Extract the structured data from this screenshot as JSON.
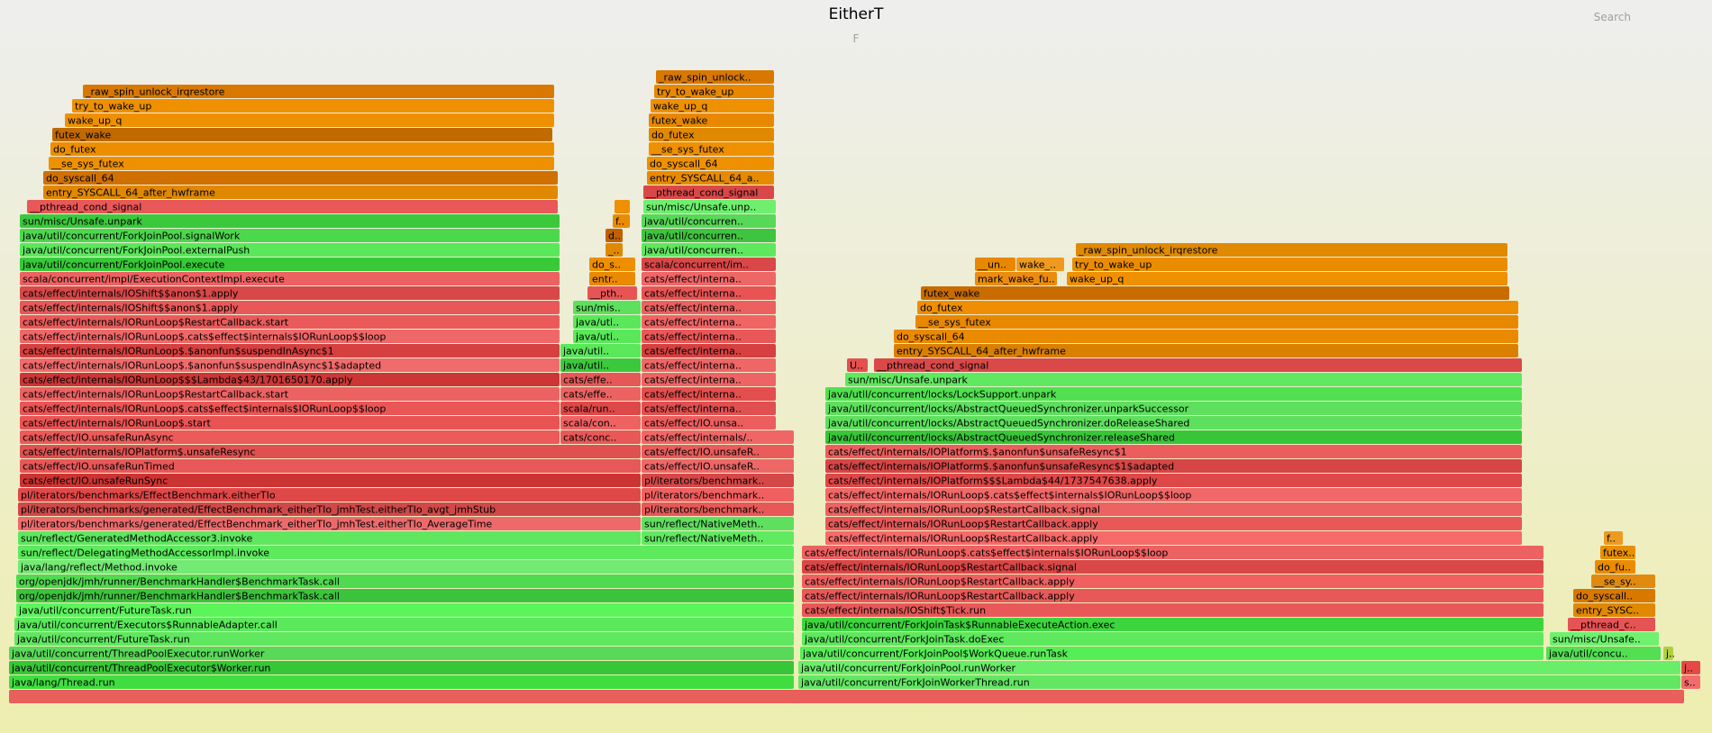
{
  "header": {
    "title": "EitherT",
    "subtitle": "F",
    "search_label": "Search"
  },
  "chart_data": {
    "type": "flamegraph",
    "title": "EitherT",
    "note": "frames: [col, row, span, label, color]; rows counted from bottom",
    "row_count": 46,
    "column_count": 1900,
    "frames": [
      [
        10,
        0,
        1860,
        "",
        "#e85f5c"
      ],
      [
        10,
        1,
        872,
        "java/lang/Thread.run",
        "#40dd40"
      ],
      [
        886,
        1,
        980,
        "java/util/concurrent/ForkJoinWorkerThread.run",
        "#63e763"
      ],
      [
        1866,
        1,
        22,
        "s..",
        "#f56b6b"
      ],
      [
        10,
        2,
        872,
        "java/util/concurrent/ThreadPoolExecutor$Worker.run",
        "#37c637"
      ],
      [
        886,
        2,
        980,
        "java/util/concurrent/ForkJoinPool.runWorker",
        "#69ee69"
      ],
      [
        1866,
        2,
        22,
        "j..",
        "#e74747"
      ],
      [
        10,
        3,
        872,
        "java/util/concurrent/ThreadPoolExecutor.runWorker",
        "#58d958"
      ],
      [
        888,
        3,
        826,
        "java/util/concurrent/ForkJoinPool$WorkQueue.runTask",
        "#56ee56"
      ],
      [
        1716,
        3,
        128,
        "java/util/concu..",
        "#52e052"
      ],
      [
        1846,
        3,
        12,
        "j..",
        "#b0d040"
      ],
      [
        16,
        4,
        866,
        "java/util/concurrent/FutureTask.run",
        "#5fe75f"
      ],
      [
        890,
        4,
        824,
        "java/util/concurrent/ForkJoinTask.doExec",
        "#5de85d"
      ],
      [
        1720,
        4,
        122,
        "sun/misc/Unsafe..",
        "#6ff16f"
      ],
      [
        16,
        5,
        866,
        "java/util/concurrent/Executors$RunnableAdapter.call",
        "#5be85b"
      ],
      [
        890,
        5,
        824,
        "java/util/concurrent/ForkJoinTask$RunnableExecuteAction.exec",
        "#3dd53d"
      ],
      [
        1740,
        5,
        98,
        "__pthread_c..",
        "#e45454"
      ],
      [
        18,
        6,
        864,
        "java/util/concurrent/FutureTask.run",
        "#5bf55b"
      ],
      [
        890,
        6,
        824,
        "cats/effect/internals/IOShift$Tick.run",
        "#e85858"
      ],
      [
        1746,
        6,
        92,
        "entry_SYSC..",
        "#e08800"
      ],
      [
        18,
        7,
        864,
        "org/openjdk/jmh/runner/BenchmarkHandler$BenchmarkTask.call",
        "#3bc43b"
      ],
      [
        890,
        7,
        824,
        "cats/effect/internals/IORunLoop$RestartCallback.apply",
        "#e85858"
      ],
      [
        1746,
        7,
        92,
        "do_syscall..",
        "#d87800"
      ],
      [
        18,
        8,
        864,
        "org/openjdk/jmh/runner/BenchmarkHandler$BenchmarkTask.call",
        "#4fda4f"
      ],
      [
        890,
        8,
        824,
        "cats/effect/internals/IORunLoop$RestartCallback.apply",
        "#f06060"
      ],
      [
        1766,
        8,
        72,
        "__se_sy..",
        "#e18a10"
      ],
      [
        20,
        9,
        862,
        "java/lang/reflect/Method.invoke",
        "#73ea73"
      ],
      [
        890,
        9,
        824,
        "cats/effect/internals/IORunLoop$RestartCallback.signal",
        "#d94747"
      ],
      [
        1770,
        9,
        46,
        "do_fu..",
        "#ea8c00"
      ],
      [
        20,
        10,
        862,
        "sun/reflect/DelegatingMethodAccessorImpl.invoke",
        "#5dea5d"
      ],
      [
        890,
        10,
        824,
        "cats/effect/internals/IORunLoop$.cats$effect$internals$IORunLoop$$loop",
        "#ec6262"
      ],
      [
        1776,
        10,
        40,
        "futex..",
        "#e89000"
      ],
      [
        20,
        11,
        692,
        "sun/reflect/GeneratedMethodAccessor3.invoke",
        "#5fe75f"
      ],
      [
        712,
        11,
        170,
        "sun/reflect/NativeMeth..",
        "#60ea60"
      ],
      [
        916,
        11,
        774,
        "cats/effect/internals/IORunLoop$RestartCallback.apply",
        "#f66a6a"
      ],
      [
        1780,
        11,
        22,
        "f..",
        "#ee9a20"
      ],
      [
        20,
        12,
        692,
        "pl/iterators/benchmarks/generated/EffectBenchmark_eitherTIo_jmhTest.eitherTIo_AverageTime",
        "#ee6a6a"
      ],
      [
        712,
        12,
        170,
        "sun/reflect/NativeMeth..",
        "#5ee05e"
      ],
      [
        916,
        12,
        774,
        "cats/effect/internals/IORunLoop$RestartCallback.apply",
        "#e85858"
      ],
      [
        20,
        13,
        692,
        "pl/iterators/benchmarks/generated/EffectBenchmark_eitherTIo_jmhTest.eitherTIo_avgt_jmhStub",
        "#d24848"
      ],
      [
        712,
        13,
        170,
        "pl/iterators/benchmark..",
        "#e85858"
      ],
      [
        916,
        13,
        774,
        "cats/effect/internals/IORunLoop$RestartCallback.signal",
        "#ed6262"
      ],
      [
        20,
        14,
        692,
        "pl/iterators/benchmarks/EffectBenchmark.eitherTIo",
        "#e04848"
      ],
      [
        712,
        14,
        170,
        "pl/iterators/benchmark..",
        "#f06060"
      ],
      [
        916,
        14,
        774,
        "cats/effect/internals/IORunLoop$.cats$effect$internals$IORunLoop$$loop",
        "#f06868"
      ],
      [
        22,
        15,
        690,
        "cats/effect/IO.unsafeRunSync",
        "#cc3434"
      ],
      [
        712,
        15,
        170,
        "pl/iterators/benchmark..",
        "#d54848"
      ],
      [
        916,
        15,
        774,
        "cats/effect/internals/IOPlatform$$$Lambda$44/1737547638.apply",
        "#de4848"
      ],
      [
        22,
        16,
        690,
        "cats/effect/IO.unsafeRunTimed",
        "#e85858"
      ],
      [
        712,
        16,
        170,
        "cats/effect/IO.unsafeR..",
        "#ee6767"
      ],
      [
        916,
        16,
        774,
        "cats/effect/internals/IOPlatform$.$anonfun$unsafeResync$1$adapted",
        "#d64646"
      ],
      [
        22,
        17,
        690,
        "cats/effect/internals/IOPlatform$.unsafeResync",
        "#e05050"
      ],
      [
        712,
        17,
        170,
        "cats/effect/IO.unsafeR..",
        "#ea5b5b"
      ],
      [
        916,
        17,
        774,
        "cats/effect/internals/IOPlatform$.$anonfun$unsafeResync$1",
        "#ec5e5e"
      ],
      [
        22,
        18,
        600,
        "cats/effect/IO.unsafeRunAsync",
        "#ec5a5a"
      ],
      [
        622,
        18,
        90,
        "cats/conc..",
        "#e85858"
      ],
      [
        712,
        18,
        170,
        "cats/effect/internals/..",
        "#f06666"
      ],
      [
        916,
        18,
        774,
        "java/util/concurrent/locks/AbstractQueuedSynchronizer.releaseShared",
        "#38c638"
      ],
      [
        22,
        19,
        600,
        "cats/effect/internals/IORunLoop$.start",
        "#e85454"
      ],
      [
        622,
        19,
        90,
        "scala/con..",
        "#ee6262"
      ],
      [
        712,
        19,
        150,
        "cats/effect/IO.unsa..",
        "#ec5e5e"
      ],
      [
        916,
        19,
        774,
        "java/util/concurrent/locks/AbstractQueuedSynchronizer.doReleaseShared",
        "#5ee05e"
      ],
      [
        22,
        20,
        600,
        "cats/effect/internals/IORunLoop$.cats$effect$internals$IORunLoop$$loop",
        "#e85656"
      ],
      [
        622,
        20,
        90,
        "scala/run..",
        "#dd4848"
      ],
      [
        712,
        20,
        150,
        "cats/effect/interna..",
        "#e05050"
      ],
      [
        916,
        20,
        774,
        "java/util/concurrent/locks/AbstractQueuedSynchronizer.unparkSuccessor",
        "#5ee05e"
      ],
      [
        22,
        21,
        600,
        "cats/effect/internals/IORunLoop$RestartCallback.start",
        "#ec6262"
      ],
      [
        622,
        21,
        90,
        "cats/effe..",
        "#ec6262"
      ],
      [
        712,
        21,
        150,
        "cats/effect/interna..",
        "#e54e4e"
      ],
      [
        916,
        21,
        774,
        "java/util/concurrent/locks/LockSupport.unpark",
        "#50e050"
      ],
      [
        22,
        22,
        600,
        "cats/effect/internals/IORunLoop$$$Lambda$43/1701650170.apply",
        "#cc3636"
      ],
      [
        622,
        22,
        90,
        "cats/effe..",
        "#e45858"
      ],
      [
        712,
        22,
        150,
        "cats/effect/interna..",
        "#ee6464"
      ],
      [
        938,
        22,
        752,
        "sun/misc/Unsafe.unpark",
        "#60e860"
      ],
      [
        22,
        23,
        600,
        "cats/effect/internals/IORunLoop$.$anonfun$suspendInAsync$1$adapted",
        "#f06b6b"
      ],
      [
        622,
        23,
        90,
        "java/util..",
        "#3cc83c"
      ],
      [
        712,
        23,
        150,
        "cats/effect/interna..",
        "#ee6666"
      ],
      [
        940,
        23,
        24,
        "U..",
        "#e45050"
      ],
      [
        970,
        23,
        720,
        "__pthread_cond_signal",
        "#da4848"
      ],
      [
        22,
        24,
        600,
        "cats/effect/internals/IORunLoop$.$anonfun$suspendInAsync$1",
        "#d54040"
      ],
      [
        622,
        24,
        90,
        "java/util..",
        "#5ae85a"
      ],
      [
        712,
        24,
        150,
        "cats/effect/interna..",
        "#d64040"
      ],
      [
        992,
        24,
        694,
        "entry_SYSCALL_64_after_hwframe",
        "#da8000"
      ],
      [
        22,
        25,
        600,
        "cats/effect/internals/IORunLoop$.cats$effect$internals$IORunLoop$$loop",
        "#ef6868"
      ],
      [
        636,
        25,
        76,
        "java/uti..",
        "#5ae85a"
      ],
      [
        712,
        25,
        150,
        "cats/effect/interna..",
        "#e85858"
      ],
      [
        992,
        25,
        694,
        "do_syscall_64",
        "#ea8a00"
      ],
      [
        22,
        26,
        600,
        "cats/effect/internals/IORunLoop$RestartCallback.start",
        "#ea5a5a"
      ],
      [
        636,
        26,
        76,
        "java/uti..",
        "#5ae85a"
      ],
      [
        712,
        26,
        150,
        "cats/effect/interna..",
        "#f06464"
      ],
      [
        1016,
        26,
        670,
        "__se_sys_futex",
        "#e88800"
      ],
      [
        22,
        27,
        600,
        "cats/effect/internals/IOShift$$anon$1.apply",
        "#e85858"
      ],
      [
        636,
        27,
        76,
        "sun/mis..",
        "#5ee05e"
      ],
      [
        712,
        27,
        150,
        "cats/effect/interna..",
        "#ec6060"
      ],
      [
        1018,
        27,
        668,
        "do_futex",
        "#ee8e00"
      ],
      [
        22,
        28,
        600,
        "cats/effect/internals/IOShift$$anon$1.apply",
        "#d84848"
      ],
      [
        652,
        28,
        56,
        "__pth..",
        "#e85454"
      ],
      [
        712,
        28,
        150,
        "cats/effect/interna..",
        "#e85454"
      ],
      [
        1022,
        28,
        654,
        "futex_wake",
        "#c86c00"
      ],
      [
        22,
        29,
        600,
        "scala/concurrent/impl/ExecutionContextImpl.execute",
        "#ec6262"
      ],
      [
        654,
        29,
        52,
        "entr..",
        "#ea8a00"
      ],
      [
        712,
        29,
        150,
        "cats/effect/interna..",
        "#ee6767"
      ],
      [
        1082,
        29,
        92,
        "mark_wake_fu..",
        "#ea8c10"
      ],
      [
        1184,
        29,
        490,
        "wake_up_q",
        "#ee9000"
      ],
      [
        22,
        30,
        600,
        "java/util/concurrent/ForkJoinPool.execute",
        "#38c838"
      ],
      [
        654,
        30,
        52,
        "do_s..",
        "#ee8e00"
      ],
      [
        712,
        30,
        150,
        "scala/concurrent/im..",
        "#d84848"
      ],
      [
        1082,
        30,
        46,
        "__un..",
        "#e88800"
      ],
      [
        1128,
        30,
        54,
        "wake_..",
        "#ee9a20"
      ],
      [
        1190,
        30,
        484,
        "try_to_wake_up",
        "#ea8c00"
      ],
      [
        22,
        31,
        600,
        "java/util/concurrent/ForkJoinPool.externalPush",
        "#5ae85a"
      ],
      [
        672,
        31,
        20,
        "_..",
        "#e08800"
      ],
      [
        712,
        31,
        150,
        "java/util/concurren..",
        "#5ee85e"
      ],
      [
        1194,
        31,
        480,
        "_raw_spin_unlock_irqrestore",
        "#e08a00"
      ],
      [
        22,
        32,
        600,
        "java/util/concurrent/ForkJoinPool.signalWork",
        "#4cd84c"
      ],
      [
        672,
        32,
        20,
        "d..",
        "#c06000"
      ],
      [
        712,
        32,
        150,
        "java/util/concurren..",
        "#3ec43e"
      ],
      [
        22,
        33,
        600,
        "sun/misc/Unsafe.unpark",
        "#3cc83c"
      ],
      [
        680,
        33,
        20,
        "f..",
        "#ea8c00"
      ],
      [
        712,
        33,
        150,
        "java/util/concurren..",
        "#58d858"
      ],
      [
        30,
        34,
        590,
        "__pthread_cond_signal",
        "#e85858"
      ],
      [
        682,
        34,
        18,
        "",
        "#ee9000"
      ],
      [
        714,
        34,
        148,
        "sun/misc/Unsafe.unp..",
        "#6ef06e"
      ],
      [
        48,
        35,
        572,
        "entry_SYSCALL_64_after_hwframe",
        "#e08800"
      ],
      [
        714,
        35,
        146,
        "__pthread_cond_signal",
        "#d84848"
      ],
      [
        48,
        36,
        572,
        "do_syscall_64",
        "#d07000"
      ],
      [
        718,
        36,
        142,
        "entry_SYSCALL_64_a..",
        "#e88a00"
      ],
      [
        54,
        37,
        562,
        "__se_sys_futex",
        "#ee9000"
      ],
      [
        718,
        37,
        142,
        "do_syscall_64",
        "#ee9000"
      ],
      [
        56,
        38,
        560,
        "do_futex",
        "#ec8e00"
      ],
      [
        720,
        38,
        140,
        "__se_sys_futex",
        "#ee9000"
      ],
      [
        58,
        39,
        556,
        "futex_wake",
        "#c06a00"
      ],
      [
        720,
        39,
        140,
        "do_futex",
        "#e08800"
      ],
      [
        72,
        40,
        544,
        "wake_up_q",
        "#ee9000"
      ],
      [
        720,
        40,
        140,
        "futex_wake",
        "#e88800"
      ],
      [
        80,
        41,
        536,
        "try_to_wake_up",
        "#ee9000"
      ],
      [
        722,
        41,
        138,
        "wake_up_q",
        "#ee9000"
      ],
      [
        92,
        42,
        524,
        "_raw_spin_unlock_irqrestore",
        "#d87800"
      ],
      [
        726,
        42,
        134,
        "try_to_wake_up",
        "#e88800"
      ],
      [
        728,
        43,
        132,
        "_raw_spin_unlock..",
        "#d87800"
      ]
    ]
  }
}
